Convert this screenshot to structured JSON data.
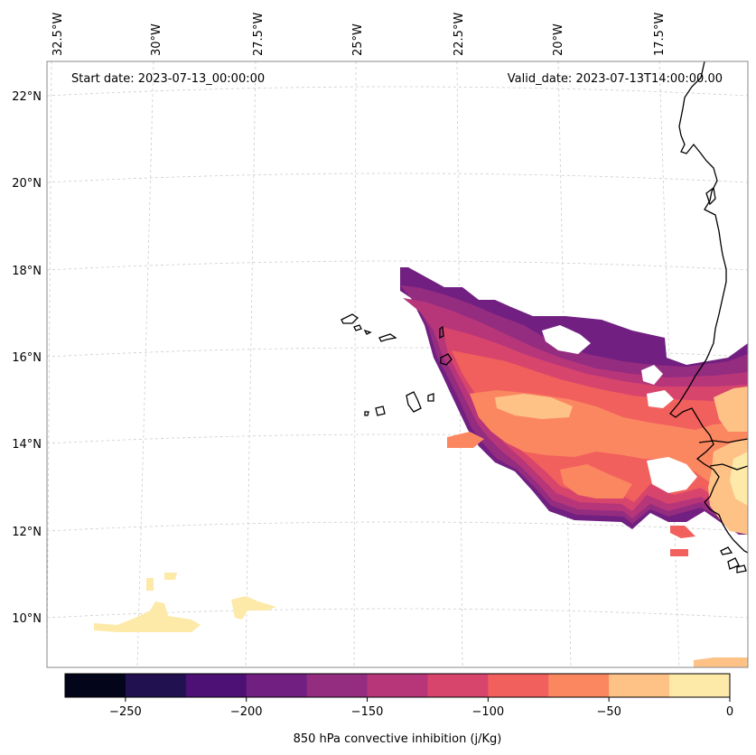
{
  "chart_data": {
    "type": "heatmap",
    "title": "",
    "map": {
      "lon_range": [
        -33.0,
        -15.5
      ],
      "lat_range": [
        8.7,
        22.8
      ],
      "lon_ticks": [
        "32.5°W",
        "30°W",
        "27.5°W",
        "25°W",
        "22.5°W",
        "20°W",
        "17.5°W"
      ],
      "lat_ticks": [
        "22°N",
        "20°N",
        "18°N",
        "16°N",
        "14°N",
        "12°N",
        "10°N"
      ],
      "gridlines": true
    },
    "start_label": "Start date: 2023-07-13_00:00:00",
    "valid_label": "Valid_date: 2023-07-13T14:00:00.00",
    "colorbar": {
      "label": "850 hPa convective inhibition (j/Kg)",
      "levels": [
        -275,
        -250,
        -225,
        -200,
        -175,
        -150,
        -125,
        -100,
        -75,
        -50,
        -25,
        0
      ],
      "tick_labels": [
        "−250",
        "−200",
        "−150",
        "−100",
        "−50",
        "0"
      ],
      "colors": [
        "#03051a",
        "#221150",
        "#4d1175",
        "#711f81",
        "#942c80",
        "#b7367a",
        "#d8456c",
        "#f1605d",
        "#fb8761",
        "#fec287",
        "#fde9a8"
      ]
    },
    "features": [
      "Cape Verde islands",
      "West African coastline (Senegal, Gambia, Guinea-Bissau)"
    ],
    "regions": [
      {
        "name": "CIN plume west of Senegal",
        "lon_extent": [
          -23.5,
          -15.5
        ],
        "lat_extent": [
          11.2,
          18.0
        ],
        "value_range": [
          -225,
          -25
        ]
      },
      {
        "name": "weak CIN patch south-west",
        "lon_extent": [
          -31.5,
          -27.0
        ],
        "lat_extent": [
          9.6,
          11.0
        ],
        "value_range": [
          -25,
          0
        ]
      },
      {
        "name": "weak CIN at coast",
        "lon_extent": [
          -16.5,
          -15.5
        ],
        "lat_extent": [
          11.5,
          14.5
        ],
        "value_range": [
          -50,
          0
        ]
      }
    ]
  }
}
